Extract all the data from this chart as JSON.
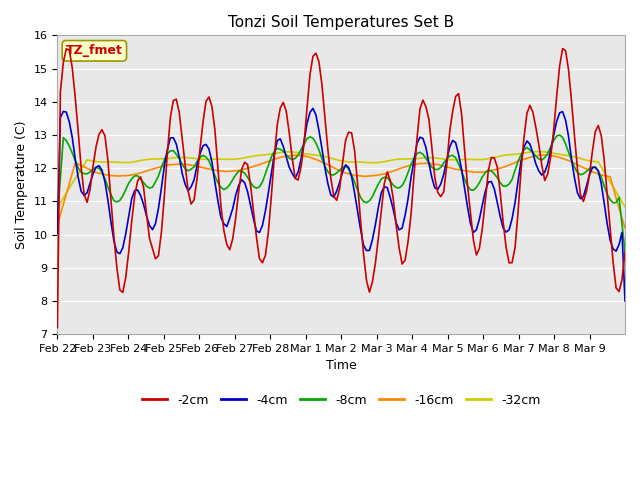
{
  "title": "Tonzi Soil Temperatures Set B",
  "xlabel": "Time",
  "ylabel": "Soil Temperature (C)",
  "ylim": [
    7.0,
    16.0
  ],
  "yticks": [
    7.0,
    8.0,
    9.0,
    10.0,
    11.0,
    12.0,
    13.0,
    14.0,
    15.0,
    16.0
  ],
  "xtick_labels": [
    "Feb 22",
    "Feb 23",
    "Feb 24",
    "Feb 25",
    "Feb 26",
    "Feb 27",
    "Feb 28",
    "Mar 1",
    "Mar 2",
    "Mar 3",
    "Mar 4",
    "Mar 5",
    "Mar 6",
    "Mar 7",
    "Mar 8",
    "Mar 9"
  ],
  "colors": {
    "-2cm": "#cc0000",
    "-4cm": "#0000cc",
    "-8cm": "#00aa00",
    "-16cm": "#ff8800",
    "-32cm": "#cccc00"
  },
  "legend_label": "TZ_fmet",
  "legend_box_facecolor": "#ffffcc",
  "legend_box_edgecolor": "#999900",
  "fig_facecolor": "#ffffff",
  "axes_facecolor": "#e8e8e8",
  "grid_color": "#ffffff",
  "linewidth": 1.2,
  "title_fontsize": 11,
  "label_fontsize": 9,
  "tick_fontsize": 8
}
